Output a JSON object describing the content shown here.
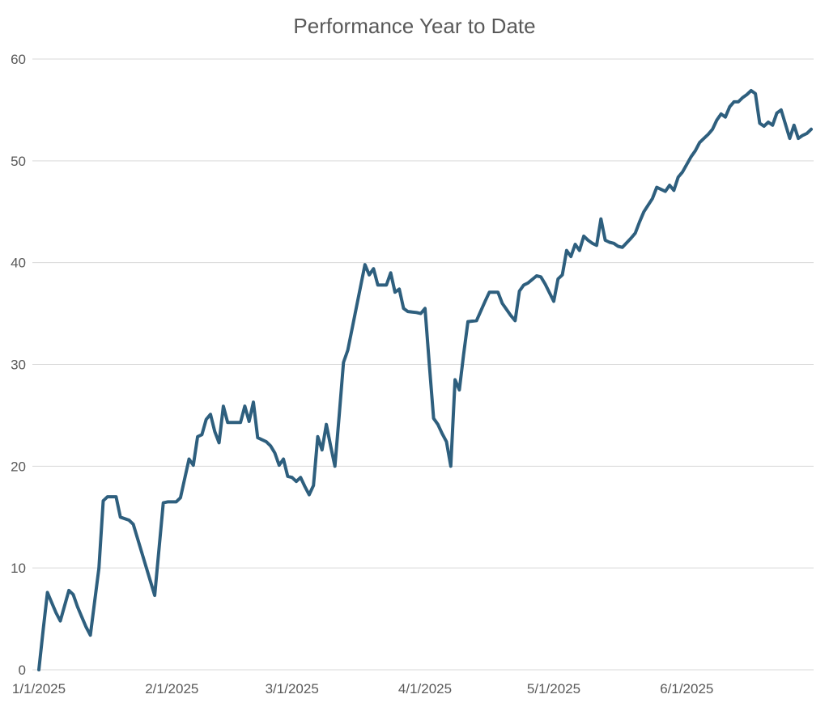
{
  "title": "Performance Year to Date",
  "colors": {
    "line": "#2E5F7E",
    "gridline": "#D9D9D9",
    "text": "#595959",
    "background": "#FFFFFF"
  },
  "chart_data": {
    "type": "line",
    "title": "Performance Year to Date",
    "xlabel": "",
    "ylabel": "",
    "legend": "none",
    "grid": "horizontal",
    "ylim": [
      0,
      60
    ],
    "x_range": [
      "1/1/2025",
      "6/30/2025"
    ],
    "y_axis": {
      "ticks": [
        0,
        10,
        20,
        30,
        40,
        50,
        60
      ],
      "labels": [
        "0",
        "10",
        "20",
        "30",
        "40",
        "50",
        "60"
      ]
    },
    "x_axis": {
      "tick_dates": [
        "1/1/2025",
        "2/1/2025",
        "3/1/2025",
        "4/1/2025",
        "5/1/2025",
        "6/1/2025"
      ],
      "labels": [
        "1/1/2025",
        "2/1/2025",
        "3/1/2025",
        "4/1/2025",
        "5/1/2025",
        "6/1/2025"
      ]
    },
    "series": [
      {
        "name": "Performance",
        "color": "#2E5F7E",
        "points": [
          [
            "1/1/2025",
            0.0
          ],
          [
            "1/2/2025",
            3.9
          ],
          [
            "1/3/2025",
            7.6
          ],
          [
            "1/4/2025",
            6.6
          ],
          [
            "1/5/2025",
            5.6
          ],
          [
            "1/6/2025",
            4.8
          ],
          [
            "1/8/2025",
            7.8
          ],
          [
            "1/9/2025",
            7.4
          ],
          [
            "1/10/2025",
            6.2
          ],
          [
            "1/11/2025",
            5.2
          ],
          [
            "1/12/2025",
            4.2
          ],
          [
            "1/13/2025",
            3.4
          ],
          [
            "1/15/2025",
            10.0
          ],
          [
            "1/16/2025",
            16.6
          ],
          [
            "1/17/2025",
            17.0
          ],
          [
            "1/19/2025",
            17.0
          ],
          [
            "1/20/2025",
            15.0
          ],
          [
            "1/22/2025",
            14.7
          ],
          [
            "1/23/2025",
            14.3
          ],
          [
            "1/24/2025",
            12.9
          ],
          [
            "1/25/2025",
            11.5
          ],
          [
            "1/26/2025",
            10.1
          ],
          [
            "1/27/2025",
            8.7
          ],
          [
            "1/28/2025",
            7.3
          ],
          [
            "1/30/2025",
            16.4
          ],
          [
            "1/31/2025",
            16.5
          ],
          [
            "2/2/2025",
            16.5
          ],
          [
            "2/3/2025",
            16.9
          ],
          [
            "2/5/2025",
            20.7
          ],
          [
            "2/6/2025",
            20.1
          ],
          [
            "2/7/2025",
            22.9
          ],
          [
            "2/8/2025",
            23.1
          ],
          [
            "2/9/2025",
            24.6
          ],
          [
            "2/10/2025",
            25.1
          ],
          [
            "2/11/2025",
            23.4
          ],
          [
            "2/12/2025",
            22.3
          ],
          [
            "2/13/2025",
            25.9
          ],
          [
            "2/14/2025",
            24.3
          ],
          [
            "2/16/2025",
            24.3
          ],
          [
            "2/17/2025",
            24.3
          ],
          [
            "2/18/2025",
            25.9
          ],
          [
            "2/19/2025",
            24.4
          ],
          [
            "2/20/2025",
            26.3
          ],
          [
            "2/21/2025",
            22.8
          ],
          [
            "2/22/2025",
            22.6
          ],
          [
            "2/23/2025",
            22.4
          ],
          [
            "2/24/2025",
            22.0
          ],
          [
            "2/25/2025",
            21.3
          ],
          [
            "2/26/2025",
            20.1
          ],
          [
            "2/27/2025",
            20.7
          ],
          [
            "2/28/2025",
            19.0
          ],
          [
            "3/1/2025",
            18.9
          ],
          [
            "3/2/2025",
            18.5
          ],
          [
            "3/3/2025",
            18.9
          ],
          [
            "3/4/2025",
            18.0
          ],
          [
            "3/5/2025",
            17.2
          ],
          [
            "3/6/2025",
            18.1
          ],
          [
            "3/7/2025",
            22.9
          ],
          [
            "3/8/2025",
            21.6
          ],
          [
            "3/9/2025",
            24.1
          ],
          [
            "3/10/2025",
            22.0
          ],
          [
            "3/11/2025",
            20.0
          ],
          [
            "3/12/2025",
            25.0
          ],
          [
            "3/13/2025",
            30.2
          ],
          [
            "3/14/2025",
            31.4
          ],
          [
            "3/15/2025",
            33.5
          ],
          [
            "3/16/2025",
            35.6
          ],
          [
            "3/17/2025",
            37.7
          ],
          [
            "3/18/2025",
            39.8
          ],
          [
            "3/19/2025",
            38.8
          ],
          [
            "3/20/2025",
            39.4
          ],
          [
            "3/21/2025",
            37.8
          ],
          [
            "3/22/2025",
            37.8
          ],
          [
            "3/23/2025",
            37.8
          ],
          [
            "3/24/2025",
            39.0
          ],
          [
            "3/25/2025",
            37.1
          ],
          [
            "3/26/2025",
            37.4
          ],
          [
            "3/27/2025",
            35.5
          ],
          [
            "3/28/2025",
            35.2
          ],
          [
            "3/30/2025",
            35.1
          ],
          [
            "3/31/2025",
            35.0
          ],
          [
            "4/1/2025",
            35.5
          ],
          [
            "4/2/2025",
            30.0
          ],
          [
            "4/3/2025",
            24.7
          ],
          [
            "4/4/2025",
            24.1
          ],
          [
            "4/5/2025",
            23.2
          ],
          [
            "4/6/2025",
            22.4
          ],
          [
            "4/7/2025",
            20.0
          ],
          [
            "4/8/2025",
            28.5
          ],
          [
            "4/9/2025",
            27.5
          ],
          [
            "4/10/2025",
            31.0
          ],
          [
            "4/11/2025",
            34.2
          ],
          [
            "4/13/2025",
            34.3
          ],
          [
            "4/15/2025",
            36.2
          ],
          [
            "4/16/2025",
            37.1
          ],
          [
            "4/18/2025",
            37.1
          ],
          [
            "4/19/2025",
            36.0
          ],
          [
            "4/21/2025",
            34.8
          ],
          [
            "4/22/2025",
            34.3
          ],
          [
            "4/23/2025",
            37.2
          ],
          [
            "4/24/2025",
            37.8
          ],
          [
            "4/25/2025",
            38.0
          ],
          [
            "4/27/2025",
            38.7
          ],
          [
            "4/28/2025",
            38.6
          ],
          [
            "4/29/2025",
            37.9
          ],
          [
            "5/1/2025",
            36.2
          ],
          [
            "5/2/2025",
            38.4
          ],
          [
            "5/3/2025",
            38.8
          ],
          [
            "5/4/2025",
            41.2
          ],
          [
            "5/5/2025",
            40.6
          ],
          [
            "5/6/2025",
            41.8
          ],
          [
            "5/7/2025",
            41.2
          ],
          [
            "5/8/2025",
            42.6
          ],
          [
            "5/9/2025",
            42.2
          ],
          [
            "5/10/2025",
            41.9
          ],
          [
            "5/11/2025",
            41.7
          ],
          [
            "5/12/2025",
            44.3
          ],
          [
            "5/13/2025",
            42.2
          ],
          [
            "5/14/2025",
            42.0
          ],
          [
            "5/15/2025",
            41.9
          ],
          [
            "5/16/2025",
            41.6
          ],
          [
            "5/17/2025",
            41.5
          ],
          [
            "5/19/2025",
            42.4
          ],
          [
            "5/20/2025",
            42.9
          ],
          [
            "5/21/2025",
            44.0
          ],
          [
            "5/22/2025",
            45.0
          ],
          [
            "5/24/2025",
            46.3
          ],
          [
            "5/25/2025",
            47.4
          ],
          [
            "5/27/2025",
            47.0
          ],
          [
            "5/28/2025",
            47.6
          ],
          [
            "5/29/2025",
            47.1
          ],
          [
            "5/30/2025",
            48.4
          ],
          [
            "5/31/2025",
            48.9
          ],
          [
            "6/2/2025",
            50.4
          ],
          [
            "6/3/2025",
            51.0
          ],
          [
            "6/4/2025",
            51.8
          ],
          [
            "6/5/2025",
            52.2
          ],
          [
            "6/6/2025",
            52.6
          ],
          [
            "6/7/2025",
            53.1
          ],
          [
            "6/8/2025",
            54.0
          ],
          [
            "6/9/2025",
            54.6
          ],
          [
            "6/10/2025",
            54.3
          ],
          [
            "6/11/2025",
            55.3
          ],
          [
            "6/12/2025",
            55.8
          ],
          [
            "6/13/2025",
            55.8
          ],
          [
            "6/14/2025",
            56.2
          ],
          [
            "6/15/2025",
            56.5
          ],
          [
            "6/16/2025",
            56.9
          ],
          [
            "6/17/2025",
            56.6
          ],
          [
            "6/18/2025",
            53.7
          ],
          [
            "6/19/2025",
            53.4
          ],
          [
            "6/20/2025",
            53.8
          ],
          [
            "6/21/2025",
            53.5
          ],
          [
            "6/22/2025",
            54.7
          ],
          [
            "6/23/2025",
            55.0
          ],
          [
            "6/25/2025",
            52.2
          ],
          [
            "6/26/2025",
            53.5
          ],
          [
            "6/27/2025",
            52.2
          ],
          [
            "6/28/2025",
            52.5
          ],
          [
            "6/29/2025",
            52.7
          ],
          [
            "6/30/2025",
            53.1
          ]
        ]
      }
    ]
  }
}
